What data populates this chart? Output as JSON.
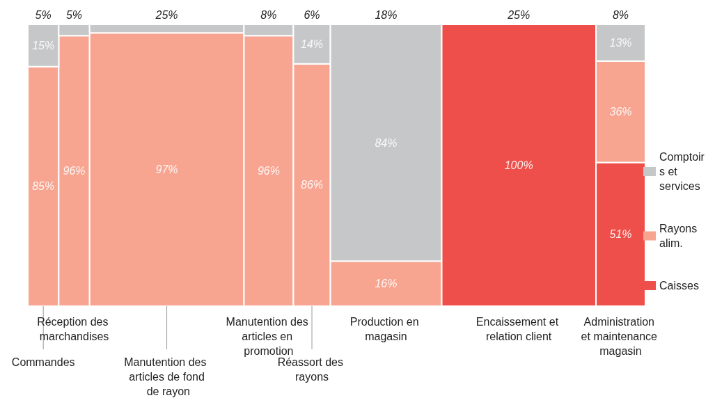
{
  "chart_data": {
    "type": "other",
    "categories": [
      "Commandes",
      "Réception des marchandises",
      "Manutention des articles de fond de rayon",
      "Manutention des articles en promotion",
      "Réassort des rayons",
      "Production en magasin",
      "Encaissement et relation client",
      "Administration et maintenance magasin"
    ],
    "values": [
      5,
      5,
      25,
      8,
      6,
      18,
      25,
      8
    ],
    "value_labels": [
      "5%",
      "5%",
      "25%",
      "8%",
      "6%",
      "18%",
      "25%",
      "8%"
    ],
    "legend": "right",
    "series": [
      {
        "name": "Caisses",
        "color": "#ef4f4a",
        "values": [
          null,
          null,
          null,
          null,
          null,
          null,
          100,
          51
        ],
        "value_labels": [
          null,
          null,
          null,
          null,
          null,
          null,
          "100%",
          "51%"
        ]
      },
      {
        "name": "Rayons alim.",
        "color": "#f7a591",
        "values": [
          85,
          96,
          97,
          96,
          86,
          16,
          null,
          36
        ],
        "value_labels": [
          "85%",
          "96%",
          "97%",
          "96%",
          "86%",
          "16%",
          null,
          "36%"
        ]
      },
      {
        "name": "Comptoirs et services",
        "color": "#c6c7c9",
        "values": [
          15,
          null,
          null,
          null,
          14,
          84,
          null,
          13
        ],
        "value_labels": [
          "15%",
          null,
          null,
          null,
          "14%",
          "84%",
          null,
          "13%"
        ]
      }
    ]
  }
}
